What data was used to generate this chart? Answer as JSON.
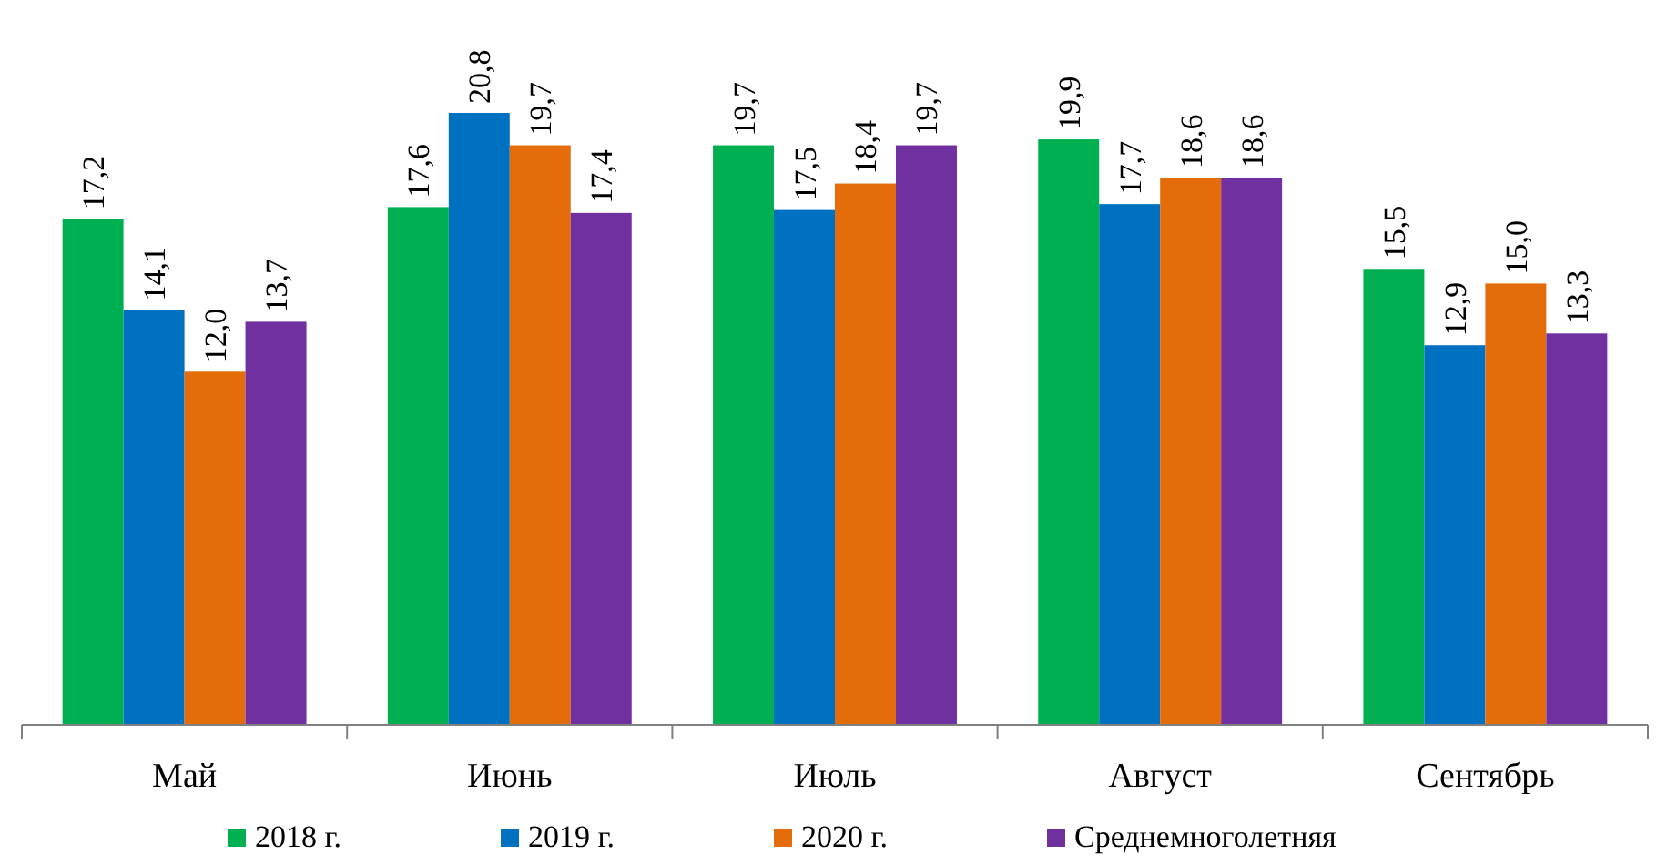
{
  "chart_data": {
    "type": "bar",
    "categories": [
      "Май",
      "Июнь",
      "Июль",
      "Август",
      "Сентябрь"
    ],
    "series": [
      {
        "name": "2018 г.",
        "color": "#00b050",
        "values": [
          17.2,
          17.6,
          19.7,
          19.9,
          15.5
        ],
        "value_labels": [
          "17,2",
          "17,6",
          "19,7",
          "19,9",
          "15,5"
        ]
      },
      {
        "name": "2019 г.",
        "color": "#0070c0",
        "values": [
          14.1,
          20.8,
          17.5,
          17.7,
          12.9
        ],
        "value_labels": [
          "14,1",
          "20,8",
          "17,5",
          "17,7",
          "12,9"
        ]
      },
      {
        "name": "2020 г.",
        "color": "#e46c0a",
        "values": [
          12.0,
          19.7,
          18.4,
          18.6,
          15.0
        ],
        "value_labels": [
          "12,0",
          "19,7",
          "18,4",
          "18,6",
          "15,0"
        ]
      },
      {
        "name": "Среднемноголетняя",
        "color": "#7030a0",
        "values": [
          13.7,
          17.4,
          19.7,
          18.6,
          13.3
        ],
        "value_labels": [
          "13,7",
          "17,4",
          "19,7",
          "18,6",
          "13,3"
        ]
      }
    ],
    "legend": "bottom",
    "tick_labels": "x"
  }
}
